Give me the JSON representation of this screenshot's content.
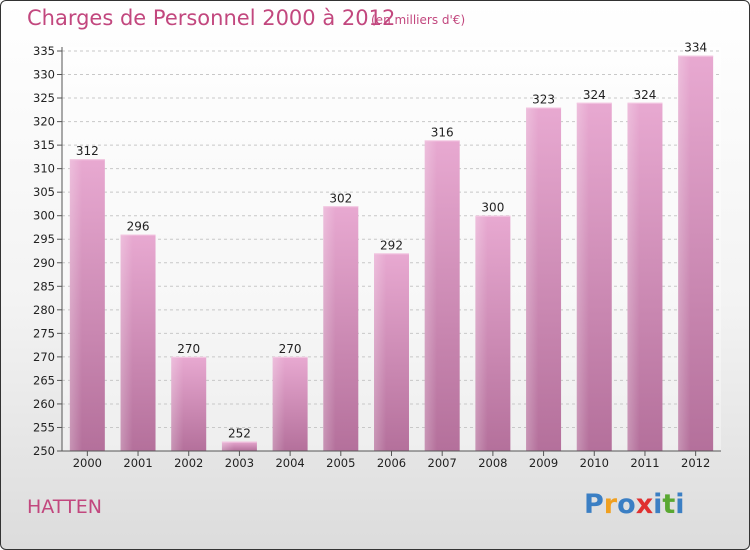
{
  "chart_data": {
    "type": "bar",
    "title": "Charges de Personnel 2000 à 2012",
    "subtitle": "(en milliers d'€)",
    "categories": [
      "2000",
      "2001",
      "2002",
      "2003",
      "2004",
      "2005",
      "2006",
      "2007",
      "2008",
      "2009",
      "2010",
      "2011",
      "2012"
    ],
    "values": [
      312,
      296,
      270,
      252,
      270,
      302,
      292,
      316,
      300,
      323,
      324,
      324,
      334
    ],
    "ylim": [
      250,
      335
    ],
    "yticks": [
      250,
      255,
      260,
      265,
      270,
      275,
      280,
      285,
      290,
      295,
      300,
      305,
      310,
      315,
      320,
      325,
      330,
      335
    ],
    "grid": true,
    "bar_color": "#d98cbb"
  },
  "place": "HATTEN",
  "logo": {
    "letters": [
      "P",
      "r",
      "o",
      "x",
      "i",
      "t",
      "i"
    ],
    "colors": [
      "#3b7fc4",
      "#f0a020",
      "#3b7fc4",
      "#e03030",
      "#3b7fc4",
      "#5aa832",
      "#3b7fc4"
    ]
  }
}
